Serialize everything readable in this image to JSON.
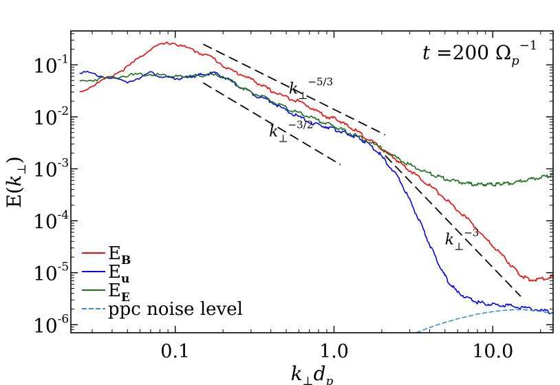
{
  "chart_data": {
    "type": "line",
    "xlabel": "k⊥dp",
    "ylabel": "E(k⊥)",
    "xscale": "log",
    "yscale": "log",
    "xlim": [
      0.022,
      24
    ],
    "ylim": [
      7e-07,
      0.45
    ],
    "grid": false,
    "legend_position": "bottom-left",
    "annotation": {
      "text": "t =200 Ωp⁻¹",
      "position": "top-right"
    },
    "x_ticks": [
      {
        "value": 0.1,
        "label": "0.1"
      },
      {
        "value": 1.0,
        "label": "1.0"
      },
      {
        "value": 10.0,
        "label": "10.0"
      }
    ],
    "y_ticks": [
      {
        "value": 0.1,
        "mantissa": "10",
        "exp": "-1"
      },
      {
        "value": 0.01,
        "mantissa": "10",
        "exp": "-2"
      },
      {
        "value": 0.001,
        "mantissa": "10",
        "exp": "-3"
      },
      {
        "value": 0.0001,
        "mantissa": "10",
        "exp": "-4"
      },
      {
        "value": 1e-05,
        "mantissa": "10",
        "exp": "-5"
      },
      {
        "value": 1e-06,
        "mantissa": "10",
        "exp": "-6"
      }
    ],
    "series": [
      {
        "name": "E_B",
        "legend_main": "E",
        "legend_sub": "B",
        "color": "#ff0000",
        "style": "solid",
        "x": [
          0.025,
          0.035,
          0.05,
          0.072,
          0.095,
          0.13,
          0.17,
          0.22,
          0.28,
          0.33,
          0.4,
          0.5,
          0.6,
          0.75,
          0.9,
          1.05,
          1.2,
          1.4,
          1.7,
          2.0,
          2.4,
          2.8,
          3.3,
          4.0,
          5.0,
          6.0,
          7.5,
          9.0,
          11.0,
          13.0,
          15.0,
          17.0,
          20.0,
          24.0
        ],
        "y": [
          0.03,
          0.05,
          0.09,
          0.22,
          0.27,
          0.19,
          0.14,
          0.08,
          0.06,
          0.045,
          0.032,
          0.024,
          0.02,
          0.014,
          0.01,
          0.009,
          0.0068,
          0.0052,
          0.0035,
          0.0024,
          0.0016,
          0.0011,
          0.00075,
          0.00048,
          0.00027,
          0.00016,
          8.5e-05,
          4.5e-05,
          2.5e-05,
          1.4e-05,
          9e-06,
          7.2e-06,
          7.5e-06,
          8.5e-06
        ]
      },
      {
        "name": "E_u",
        "legend_main": "E",
        "legend_sub": "u",
        "color": "#0000ff",
        "style": "solid",
        "x": [
          0.025,
          0.035,
          0.05,
          0.07,
          0.09,
          0.11,
          0.13,
          0.15,
          0.18,
          0.22,
          0.27,
          0.33,
          0.4,
          0.5,
          0.6,
          0.75,
          0.9,
          1.05,
          1.2,
          1.4,
          1.6,
          1.9,
          2.2,
          2.6,
          3.0,
          3.5,
          4.0,
          4.6,
          5.2,
          6.0,
          7.0,
          8.0,
          9.5,
          11.0,
          13.0,
          16.0,
          20.0,
          24.0
        ],
        "y": [
          0.075,
          0.06,
          0.047,
          0.07,
          0.055,
          0.055,
          0.06,
          0.065,
          0.07,
          0.05,
          0.035,
          0.025,
          0.02,
          0.013,
          0.01,
          0.0072,
          0.0065,
          0.0055,
          0.0048,
          0.004,
          0.0032,
          0.0021,
          0.0012,
          0.0006,
          0.00025,
          9e-05,
          3.5e-05,
          1.4e-05,
          7e-06,
          4.2e-06,
          3.2e-06,
          2.7e-06,
          2.5e-06,
          2.4e-06,
          2.3e-06,
          2.1e-06,
          1.9e-06,
          1.7e-06
        ]
      },
      {
        "name": "E_E",
        "legend_main": "E",
        "legend_sub": "E",
        "color": "#1a6e1a",
        "style": "solid",
        "x": [
          0.025,
          0.035,
          0.05,
          0.07,
          0.09,
          0.11,
          0.13,
          0.16,
          0.2,
          0.25,
          0.3,
          0.37,
          0.45,
          0.55,
          0.65,
          0.8,
          0.95,
          1.1,
          1.3,
          1.6,
          2.0,
          2.5,
          3.0,
          3.6,
          4.3,
          5.0,
          6.0,
          7.0,
          8.0,
          9.0,
          10.0,
          11.0,
          12.0,
          14.0,
          16.0,
          19.0,
          22.0,
          24.0
        ],
        "y": [
          0.048,
          0.055,
          0.063,
          0.066,
          0.063,
          0.058,
          0.06,
          0.065,
          0.06,
          0.04,
          0.03,
          0.023,
          0.017,
          0.013,
          0.011,
          0.0085,
          0.007,
          0.0058,
          0.0047,
          0.0035,
          0.0025,
          0.0016,
          0.0012,
          0.00092,
          0.00075,
          0.00065,
          0.00056,
          0.00052,
          0.0005,
          0.0005,
          0.0005,
          0.00051,
          0.00052,
          0.00055,
          0.0006,
          0.00066,
          0.00072,
          0.00076
        ]
      },
      {
        "name": "ppc noise level",
        "legend_main": "ppc noise level",
        "legend_sub": "",
        "color": "#3a8ad8",
        "style": "dashed",
        "x": [
          3.3,
          3.6,
          4.0,
          4.5,
          5.0,
          5.5,
          6.0,
          7.0,
          8.0,
          9.0,
          10.0,
          11.0,
          12.0,
          13.0,
          14.0,
          15.0,
          16.0,
          18.0,
          20.0,
          22.0,
          24.0
        ],
        "y": [
          7e-07,
          7.8e-07,
          8.8e-07,
          1e-06,
          1.1e-06,
          1.2e-06,
          1.3e-06,
          1.45e-06,
          1.6e-06,
          1.7e-06,
          1.78e-06,
          1.85e-06,
          1.9e-06,
          1.93e-06,
          1.95e-06,
          1.95e-06,
          1.93e-06,
          1.88e-06,
          1.8e-06,
          1.72e-06,
          1.65e-06
        ]
      }
    ],
    "reference_lines": [
      {
        "label": "k⊥^(-5/3)",
        "base": "k",
        "sub": "⊥",
        "exp": "−5/3",
        "color": "#000000",
        "x": [
          0.15,
          2.1
        ],
        "y": [
          0.25,
          0.0045
        ],
        "label_anchor": [
          0.52,
          0.028
        ]
      },
      {
        "label": "k⊥^(-3/2)",
        "base": "k",
        "sub": "⊥",
        "exp": "−3/2",
        "color": "#000000",
        "x": [
          0.15,
          1.1
        ],
        "y": [
          0.045,
          0.0012
        ],
        "label_anchor": [
          0.39,
          0.0042
        ]
      },
      {
        "label": "k⊥^(-3)",
        "base": "k",
        "sub": "⊥",
        "exp": "−3",
        "color": "#000000",
        "x": [
          2.1,
          15.0
        ],
        "y": [
          0.0018,
          3.5e-06
        ],
        "label_anchor": [
          5.0,
          3.5e-05
        ]
      }
    ]
  }
}
